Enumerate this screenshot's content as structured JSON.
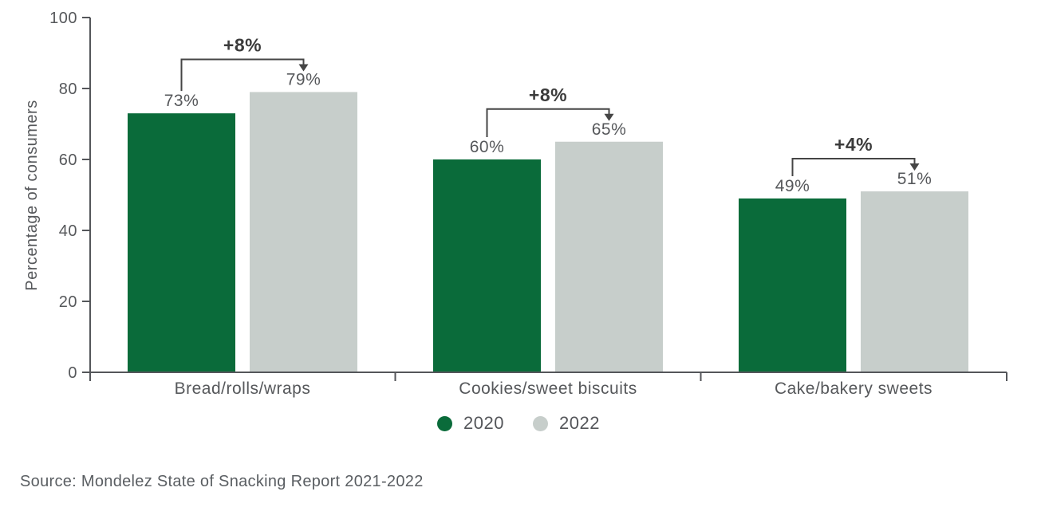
{
  "chart_data": {
    "type": "bar",
    "title": "",
    "xlabel": "",
    "ylabel": "Percentage of consumers",
    "ylim": [
      0,
      100
    ],
    "yticks": [
      0,
      20,
      40,
      60,
      80,
      100
    ],
    "grid": false,
    "legend_position": "bottom",
    "categories": [
      "Bread/rolls/wraps",
      "Cookies/sweet biscuits",
      "Cake/bakery sweets"
    ],
    "series": [
      {
        "name": "2020",
        "color": "#0a6b3a",
        "values": [
          73,
          60,
          49
        ],
        "labels": [
          "73%",
          "60%",
          "49%"
        ]
      },
      {
        "name": "2022",
        "color": "#c7cecb",
        "values": [
          79,
          65,
          51
        ],
        "labels": [
          "79%",
          "65%",
          "51%"
        ]
      }
    ],
    "annotations": [
      {
        "category_index": 0,
        "label": "+8%"
      },
      {
        "category_index": 1,
        "label": "+8%"
      },
      {
        "category_index": 2,
        "label": "+4%"
      }
    ]
  },
  "source": {
    "text": "Source: Mondelez State of Snacking Report 2021-2022"
  },
  "colors": {
    "axis": "#54565a",
    "tick_label": "#56585b",
    "bar_label": "#56585b",
    "annotation_line": "#454545",
    "annotation_label": "#3b3b3b",
    "green": "#0a6b3a",
    "gray": "#c7cecb"
  }
}
